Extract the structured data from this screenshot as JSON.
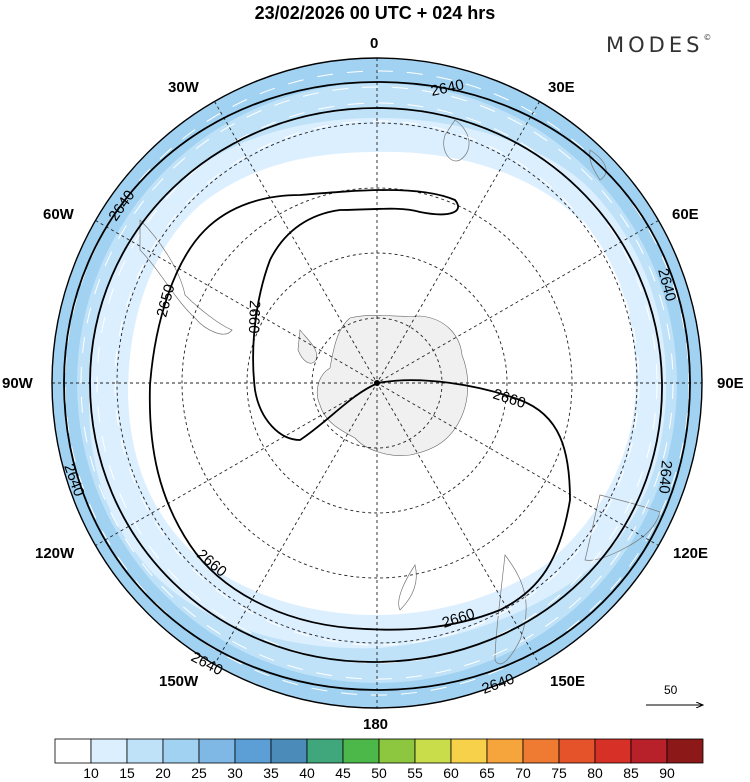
{
  "title": "23/02/2026  00 UTC  + 024 hrs",
  "brand": "MODES",
  "brand_mark": "©",
  "longitude_labels": {
    "lon_0": "0",
    "lon_30e": "30E",
    "lon_60e": "60E",
    "lon_90e": "90E",
    "lon_120e": "120E",
    "lon_150e": "150E",
    "lon_180": "180",
    "lon_150w": "150W",
    "lon_120w": "120W",
    "lon_90w": "90W",
    "lon_60w": "60W",
    "lon_30w": "30W"
  },
  "contours": {
    "label_2640": "2640",
    "label_2650": "2650",
    "label_2660": "2660"
  },
  "wind_reference": {
    "value": "50"
  },
  "colorbar": {
    "labels": [
      "10",
      "15",
      "20",
      "25",
      "30",
      "35",
      "40",
      "45",
      "50",
      "55",
      "60",
      "65",
      "70",
      "75",
      "80",
      "85",
      "90"
    ],
    "colors": [
      "#ffffff",
      "#dcefff",
      "#bfe2f8",
      "#a1d2f2",
      "#7fb8e4",
      "#5b9fd6",
      "#4a8bb9",
      "#40a77c",
      "#4cb84a",
      "#8dc63f",
      "#c9dc4a",
      "#f7d14a",
      "#f6a43c",
      "#ef7a32",
      "#e5532b",
      "#d73027",
      "#b8202a",
      "#8c1818"
    ]
  }
}
